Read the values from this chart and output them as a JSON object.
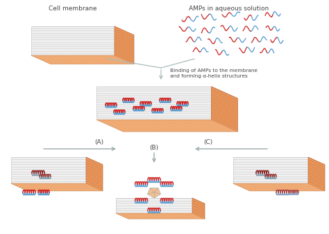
{
  "bg_color": "#ffffff",
  "orange_top": "#F5B07A",
  "orange_side": "#E8955A",
  "white_bilayer": "#F0F0F0",
  "bilayer_line": "#CCCCCC",
  "helix_red": "#CC2222",
  "helix_blue": "#5599CC",
  "helix_dark_red": "#882222",
  "helix_gray_blue": "#8899AA",
  "text_color": "#444444",
  "arrow_color": "#99AAAA",
  "title1": "Cell membrane",
  "title2": "AMPs in aqueous solution",
  "binding_text1": "Binding of AMPs to the membrane",
  "binding_text2": "and forming α-helix structures",
  "label_A": "(A)",
  "label_B": "(B)",
  "label_C": "(C)"
}
